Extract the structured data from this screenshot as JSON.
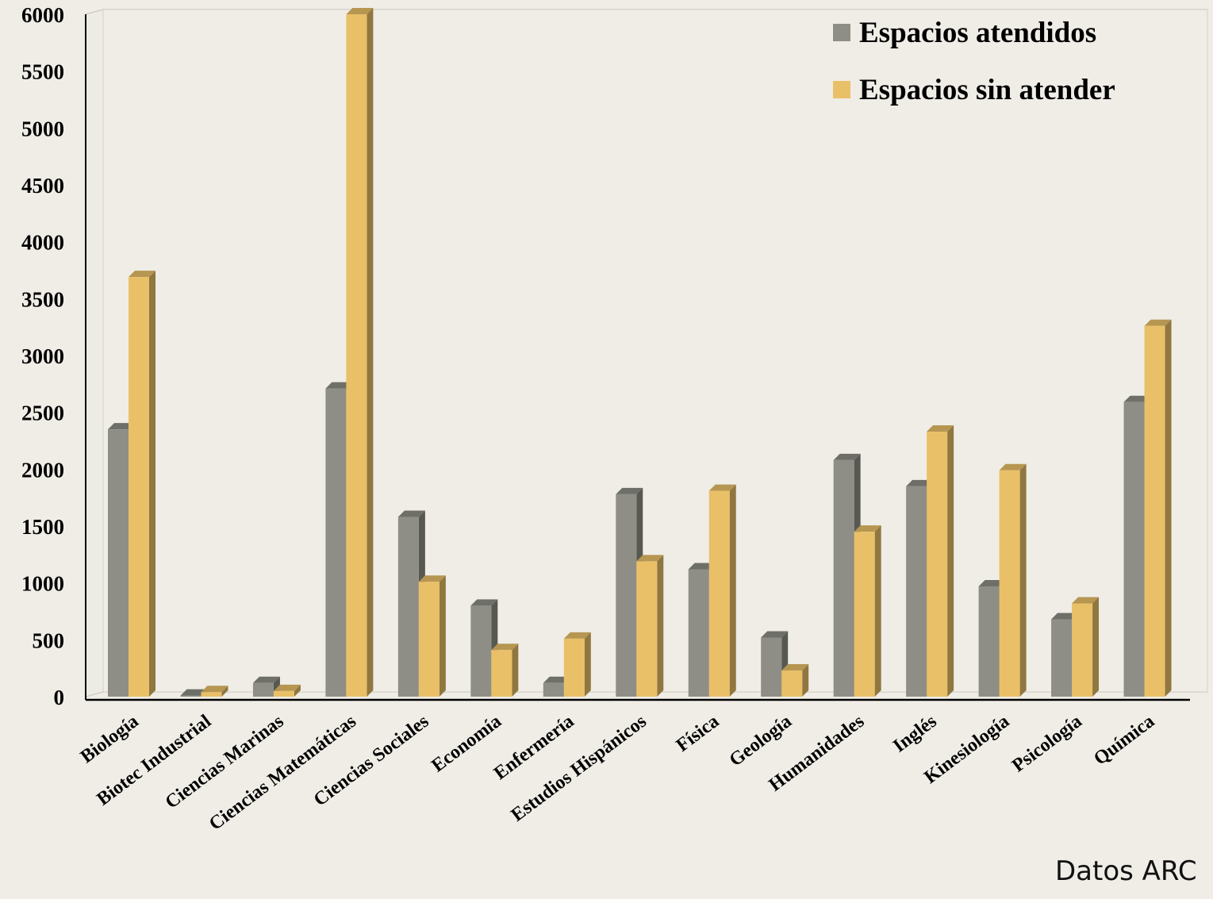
{
  "chart_data": {
    "type": "bar",
    "title": "",
    "xlabel": "",
    "ylabel": "",
    "ylim": [
      0,
      6000
    ],
    "yticks": [
      0,
      500,
      1000,
      1500,
      2000,
      2500,
      3000,
      3500,
      4000,
      4500,
      5000,
      5500,
      6000
    ],
    "grid": true,
    "legend_position": "top-right",
    "categories": [
      "Biología",
      "Biotec Industrial",
      "Ciencias Marinas",
      "Ciencias Matemáticas",
      "Ciencias Sociales",
      "Economía",
      "Enfermería",
      "Estudios Hispánicos",
      "Física",
      "Geología",
      "Humanidades",
      "Inglés",
      "Kinesiología",
      "Psicología",
      "Química"
    ],
    "series": [
      {
        "name": "Espacios atendidos",
        "color": "#8e8e86",
        "values": [
          2350,
          10,
          120,
          2710,
          1580,
          800,
          120,
          1780,
          1120,
          520,
          2080,
          1850,
          970,
          680,
          2590
        ]
      },
      {
        "name": "Espacios sin atender",
        "color": "#e9c068",
        "values": [
          3690,
          40,
          50,
          6000,
          1010,
          410,
          510,
          1190,
          1810,
          230,
          1450,
          2330,
          1990,
          820,
          3260
        ]
      }
    ]
  },
  "credit": "Datos ARC"
}
